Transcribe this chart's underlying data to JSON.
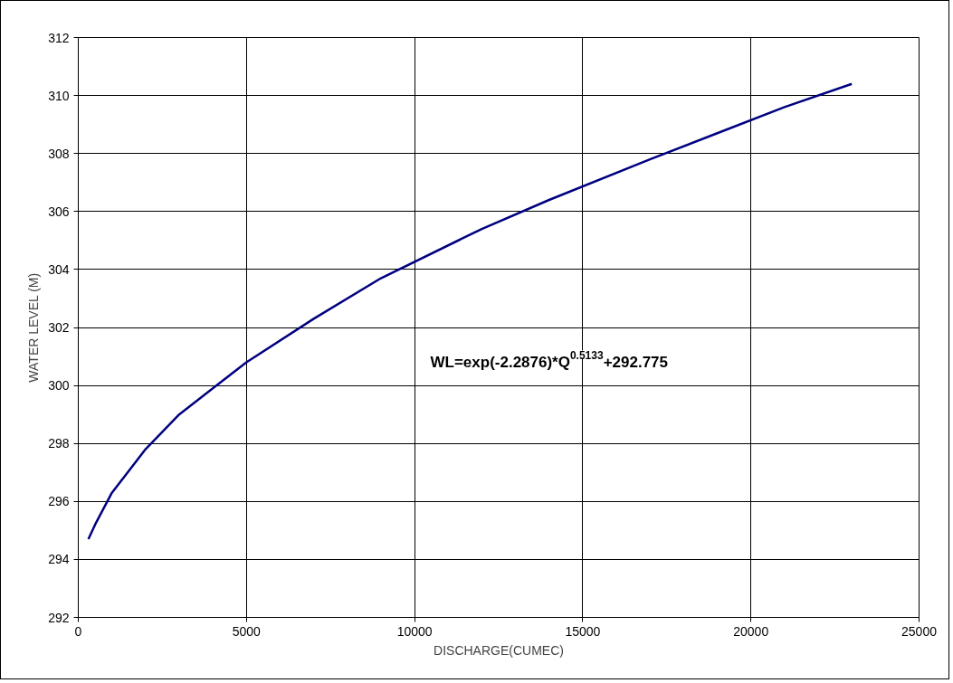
{
  "chart_data": {
    "type": "line",
    "xlabel": "DISCHARGE(CUMEC)",
    "ylabel": "WATER LEVEL (M)",
    "annotations": [
      "WL=exp(-2.2876)*Q$^{0.5133}$+292.775"
    ],
    "x": [
      300,
      500,
      1000,
      2000,
      3000,
      4000,
      5000,
      7000,
      9000,
      12000,
      14000,
      17000,
      19000,
      21000,
      23000
    ],
    "series": [
      {
        "color": "#000080",
        "values": [
          294.7,
          295.2,
          296.3,
          297.8,
          299.0,
          299.9,
          300.8,
          302.3,
          303.7,
          305.4,
          306.4,
          307.8,
          308.7,
          309.6,
          310.4
        ]
      }
    ],
    "xlim": [
      0,
      25000
    ],
    "ylim": [
      292,
      312
    ],
    "xticks": [
      0,
      5000,
      10000,
      15000,
      20000,
      25000
    ],
    "yticks": [
      292,
      294,
      296,
      298,
      300,
      302,
      304,
      306,
      308,
      310,
      312
    ],
    "grid": true,
    "marker": "none",
    "line_style": "solid"
  }
}
